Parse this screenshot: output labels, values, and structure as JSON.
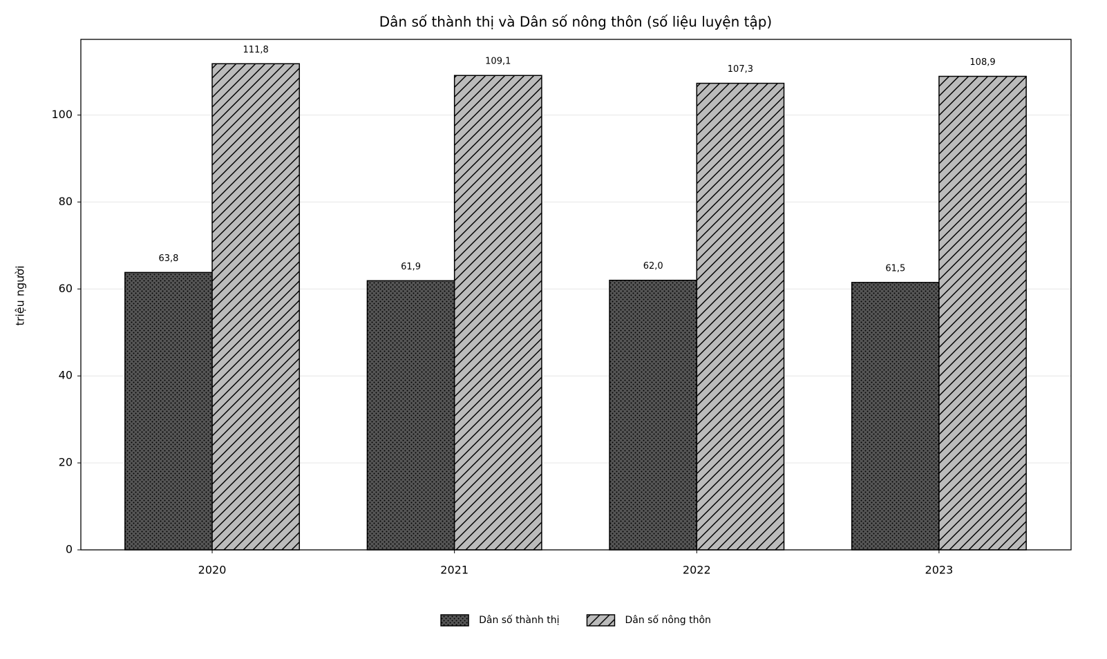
{
  "chart_data": {
    "type": "bar",
    "title": "Dân số thành thị và Dân số nông thôn (số liệu luyện tập)",
    "y_label": "triệu người",
    "categories": [
      "2020",
      "2021",
      "2022",
      "2023"
    ],
    "series": [
      {
        "name": "Dân số thành thị",
        "color": "#555555",
        "hatch": "dots",
        "values": [
          63.8,
          61.9,
          62.0,
          61.5
        ],
        "value_labels": [
          "63,8",
          "61,9",
          "62,0",
          "61,5"
        ]
      },
      {
        "name": "Dân số nông thôn",
        "color": "#bbbbbb",
        "hatch": "diagonal",
        "values": [
          111.8,
          109.1,
          107.3,
          108.9
        ],
        "value_labels": [
          "111,8",
          "109,1",
          "107,3",
          "108,9"
        ]
      }
    ],
    "ylim": [
      0,
      117.4
    ],
    "yticks": [
      0,
      20,
      40,
      60,
      80,
      100
    ],
    "grid": true,
    "legend": "bottom"
  }
}
